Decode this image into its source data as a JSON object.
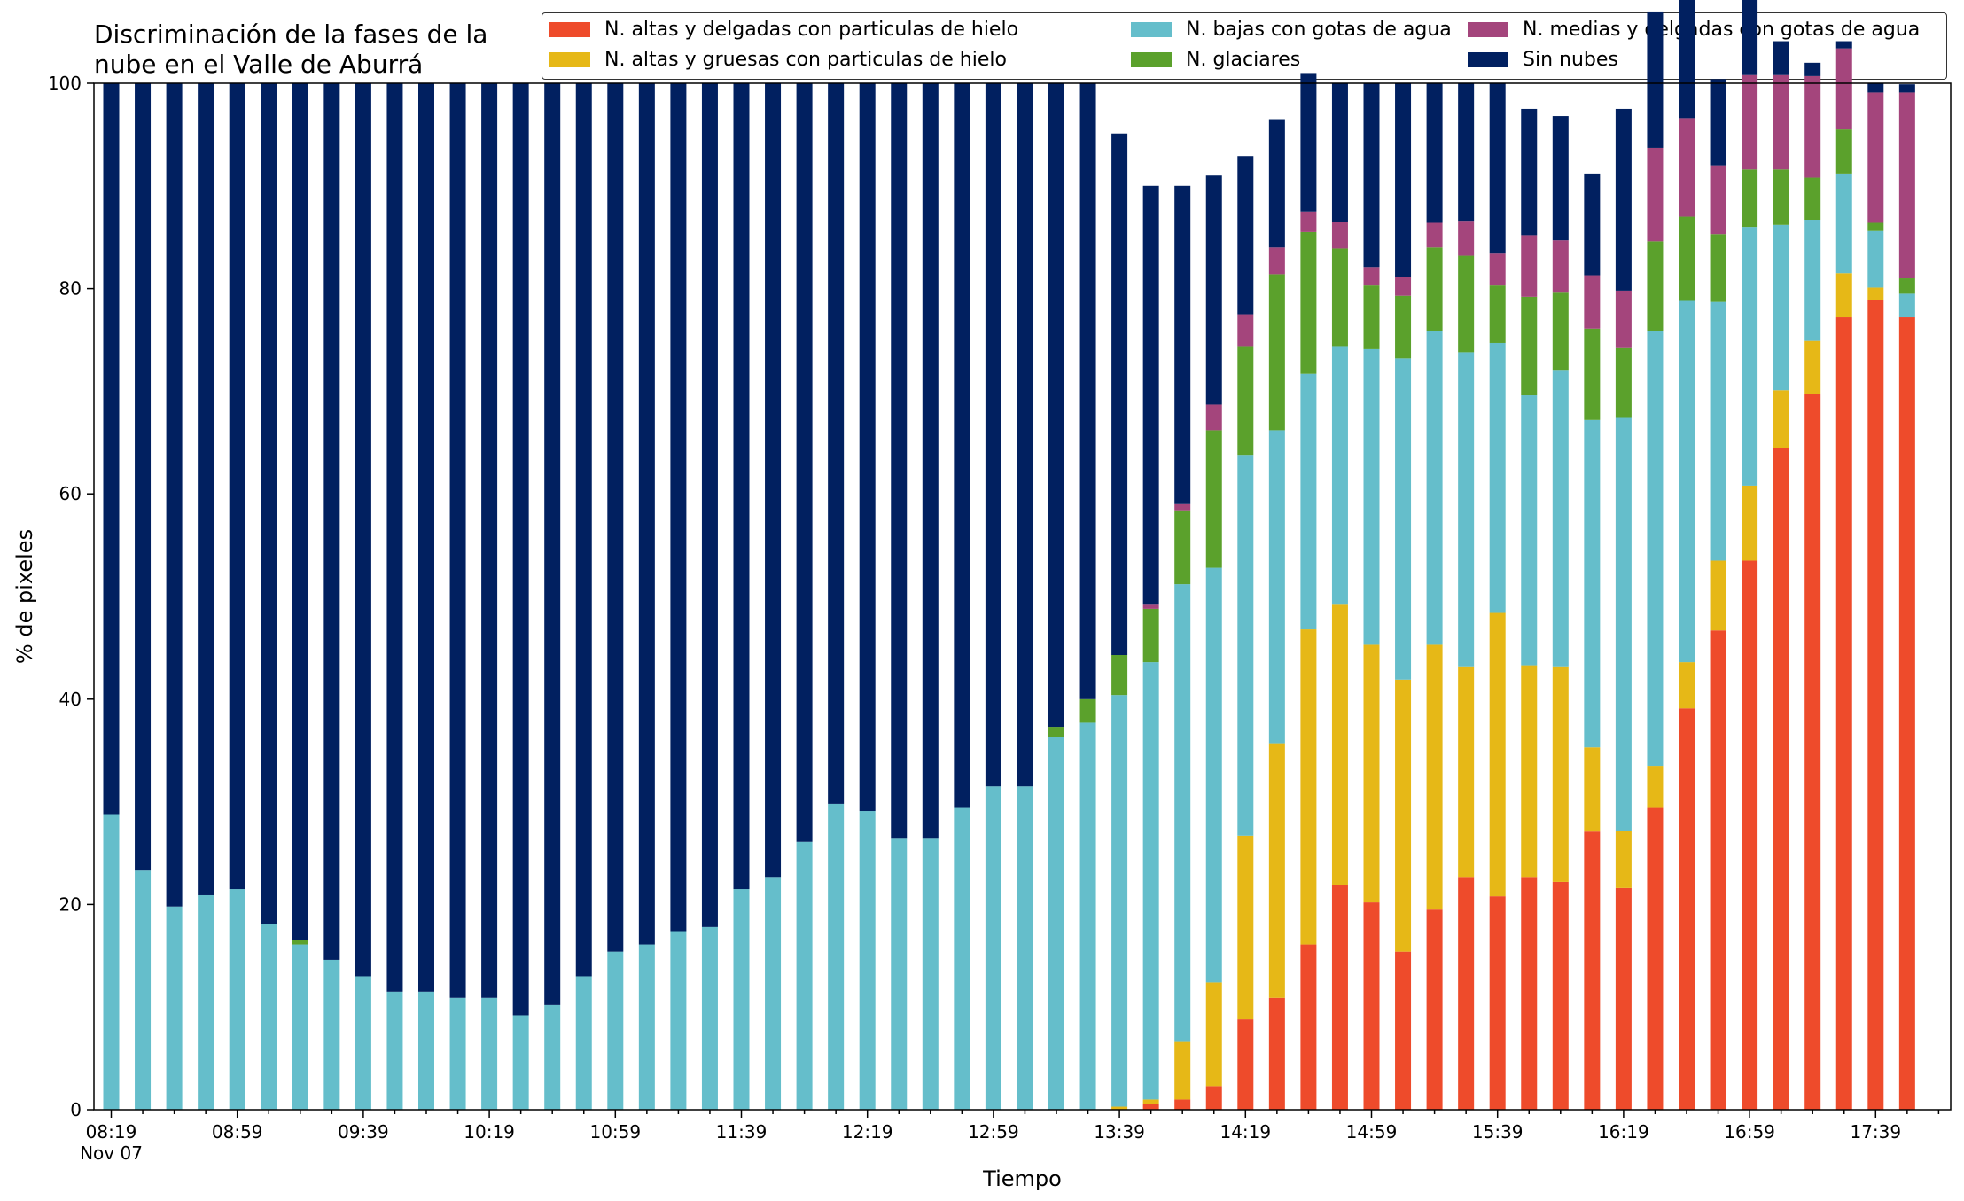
{
  "chart_data": {
    "type": "bar",
    "stacked": true,
    "title": "Discriminación de la fases de la\nnube en el Valle de Aburrá",
    "xlabel": "Tiempo",
    "ylabel": "% de pixeles",
    "ylim": [
      0,
      100
    ],
    "yticks": [
      0,
      20,
      40,
      60,
      80,
      100
    ],
    "grid": false,
    "legend_position": "top",
    "tick_labels": [
      {
        "text": "08:19",
        "index": 0,
        "sub": "Nov 07"
      },
      {
        "text": "08:59",
        "index": 4
      },
      {
        "text": "09:39",
        "index": 8
      },
      {
        "text": "10:19",
        "index": 12
      },
      {
        "text": "10:59",
        "index": 16
      },
      {
        "text": "11:39",
        "index": 20
      },
      {
        "text": "12:19",
        "index": 24
      },
      {
        "text": "12:59",
        "index": 28
      },
      {
        "text": "13:39",
        "index": 32
      },
      {
        "text": "14:19",
        "index": 36
      },
      {
        "text": "14:59",
        "index": 40
      },
      {
        "text": "15:39",
        "index": 44
      },
      {
        "text": "16:19",
        "index": 48
      },
      {
        "text": "16:59",
        "index": 52
      },
      {
        "text": "17:39",
        "index": 56
      }
    ],
    "series": [
      {
        "name": "N. altas y delgadas con particulas de hielo",
        "color": "#EE4B2B",
        "values": [
          0,
          0,
          0,
          0,
          0,
          0,
          0,
          0,
          0,
          0,
          0,
          0,
          0,
          0,
          0,
          0,
          0,
          0,
          0,
          0,
          0,
          0,
          0,
          0,
          0,
          0,
          0,
          0,
          0,
          0,
          0,
          0,
          0,
          0.6,
          1.0,
          2.3,
          8.8,
          10.9,
          16.1,
          21.9,
          20.2,
          15.4,
          19.5,
          22.6,
          20.8,
          22.6,
          22.2,
          27.1,
          21.6,
          29.4,
          39.1,
          46.7,
          53.5,
          64.5,
          69.7,
          77.2,
          78.9,
          77.2
        ]
      },
      {
        "name": "N. altas y gruesas con particulas de hielo",
        "color": "#E6B817",
        "values": [
          0,
          0,
          0,
          0,
          0,
          0,
          0,
          0,
          0,
          0,
          0,
          0,
          0,
          0,
          0,
          0,
          0,
          0,
          0,
          0,
          0,
          0,
          0,
          0,
          0,
          0,
          0,
          0,
          0,
          0,
          0,
          0,
          0.3,
          0.4,
          5.6,
          10.1,
          17.9,
          24.8,
          30.7,
          27.3,
          25.1,
          26.5,
          25.8,
          20.6,
          27.6,
          20.7,
          21.0,
          8.2,
          5.6,
          4.1,
          4.5,
          6.8,
          7.3,
          5.6,
          5.2,
          4.3,
          1.2,
          0
        ]
      },
      {
        "name": "N. bajas con gotas de agua",
        "color": "#65BECB",
        "values": [
          28.8,
          23.3,
          19.8,
          20.9,
          21.5,
          18.1,
          16.1,
          14.6,
          13.0,
          11.5,
          11.5,
          10.9,
          10.9,
          9.2,
          10.2,
          13.0,
          15.4,
          16.1,
          17.4,
          17.8,
          21.5,
          22.6,
          26.1,
          29.8,
          29.1,
          26.4,
          26.4,
          29.4,
          31.5,
          31.5,
          36.3,
          37.7,
          40.1,
          42.6,
          44.6,
          40.4,
          37.1,
          30.5,
          24.9,
          25.2,
          28.8,
          31.3,
          30.6,
          30.6,
          26.3,
          26.3,
          28.8,
          31.9,
          40.2,
          42.4,
          35.2,
          25.2,
          25.2,
          16.1,
          11.8,
          9.7,
          5.5,
          2.3
        ]
      },
      {
        "name": "N. glaciares",
        "color": "#5BA12C",
        "values": [
          0,
          0,
          0,
          0,
          0,
          0,
          0.4,
          0,
          0,
          0,
          0,
          0,
          0,
          0,
          0,
          0,
          0,
          0,
          0,
          0,
          0,
          0,
          0,
          0,
          0,
          0,
          0,
          0,
          0,
          0,
          1.0,
          2.3,
          3.9,
          5.2,
          7.2,
          13.4,
          10.6,
          15.2,
          13.8,
          9.5,
          6.2,
          6.1,
          8.1,
          9.4,
          5.6,
          9.6,
          7.6,
          8.9,
          6.8,
          8.7,
          8.2,
          6.6,
          5.6,
          5.4,
          4.1,
          4.3,
          0.8,
          1.5
        ]
      },
      {
        "name": "N. medias y delgadas con gotas de agua",
        "color": "#A4457C",
        "values": [
          0,
          0,
          0,
          0,
          0,
          0,
          0,
          0,
          0,
          0,
          0,
          0,
          0,
          0,
          0,
          0,
          0,
          0,
          0,
          0,
          0,
          0,
          0,
          0,
          0,
          0,
          0,
          0,
          0,
          0,
          0,
          0,
          0,
          0.4,
          0.6,
          2.5,
          3.1,
          2.6,
          2.0,
          2.6,
          1.8,
          1.8,
          2.4,
          3.4,
          3.1,
          6.0,
          5.1,
          5.2,
          5.6,
          9.1,
          9.6,
          6.7,
          9.2,
          9.2,
          9.9,
          7.9,
          12.7,
          18.1
        ]
      },
      {
        "name": "Sin nubes",
        "color": "#012060",
        "values": [
          71.2,
          76.7,
          80.2,
          79.1,
          78.5,
          81.9,
          83.5,
          85.4,
          87.0,
          88.5,
          88.5,
          89.1,
          89.1,
          90.8,
          89.8,
          87.0,
          84.6,
          83.9,
          82.6,
          82.2,
          78.5,
          77.4,
          73.9,
          70.2,
          70.9,
          73.6,
          73.6,
          70.6,
          68.5,
          68.5,
          62.7,
          60.0,
          50.8,
          40.8,
          31.0,
          22.3,
          15.4,
          12.5,
          13.5,
          13.5,
          17.9,
          18.9,
          13.6,
          13.4,
          16.6,
          12.3,
          12.1,
          9.9,
          17.7,
          13.3,
          13.3,
          8.4,
          8.2,
          3.3,
          1.3,
          0.7,
          0.9,
          0.8
        ]
      }
    ]
  }
}
